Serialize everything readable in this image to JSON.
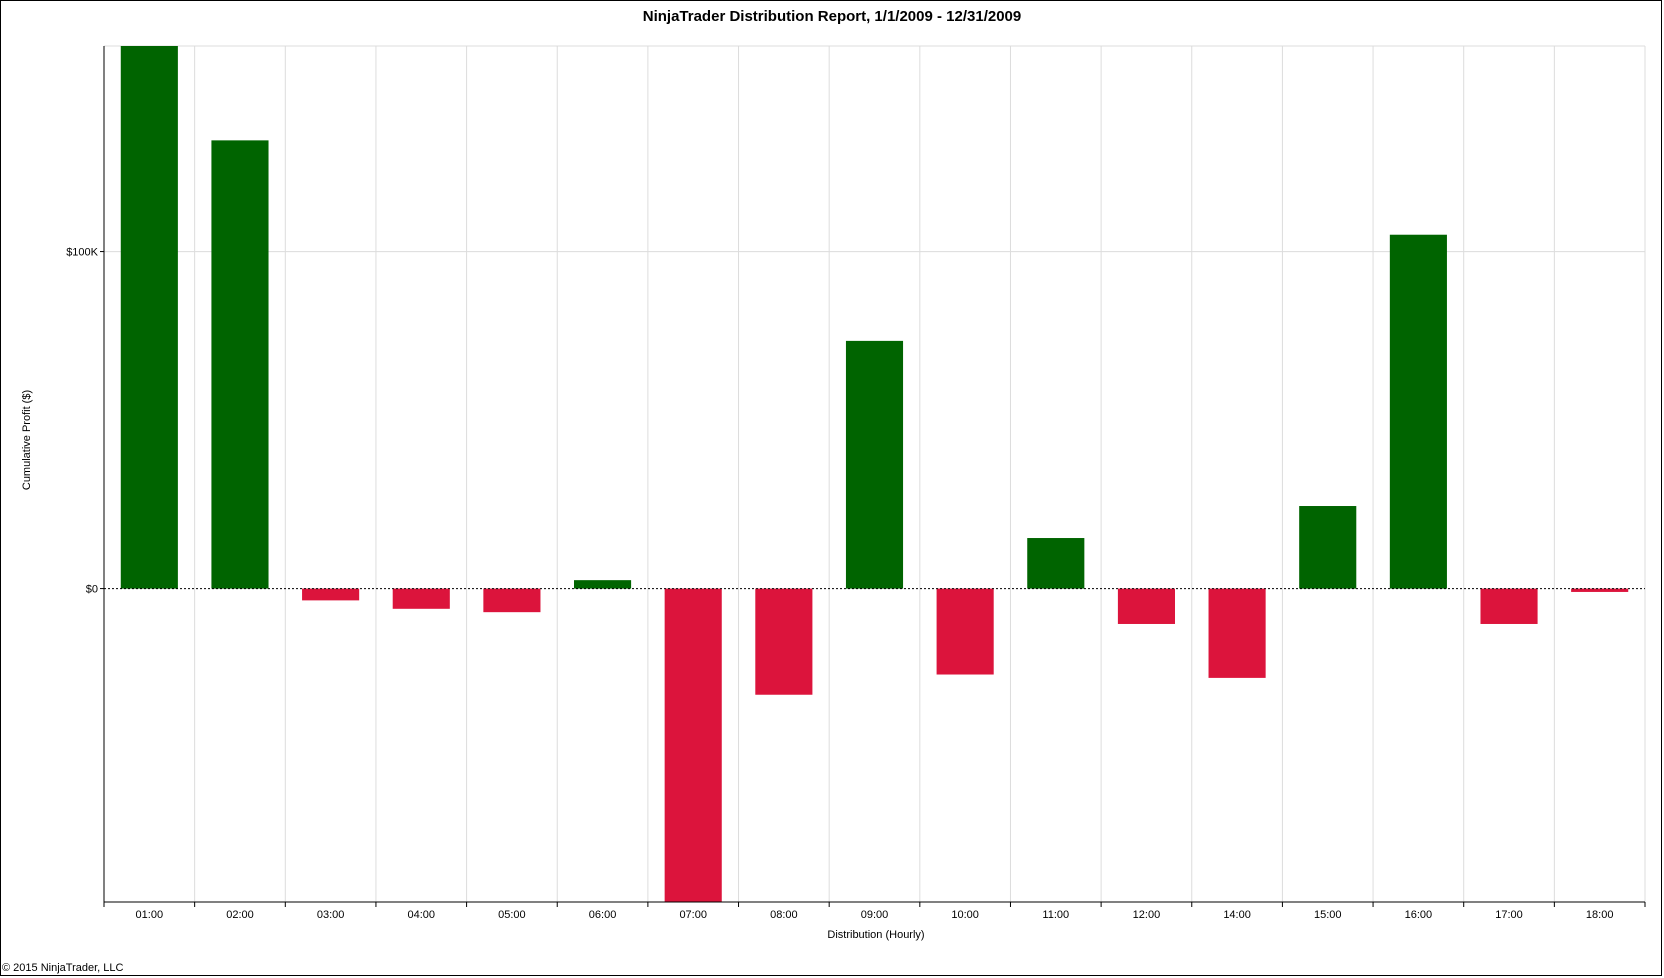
{
  "title": "NinjaTrader Distribution Report, 1/1/2009 - 12/31/2009",
  "footer": "© 2015 NinjaTrader, LLC",
  "chart_data": {
    "type": "bar",
    "title": "NinjaTrader Distribution Report, 1/1/2009 - 12/31/2009",
    "xlabel": "Distribution (Hourly)",
    "ylabel": "Cumulative Profit ($)",
    "categories": [
      "01:00",
      "02:00",
      "03:00",
      "04:00",
      "05:00",
      "06:00",
      "07:00",
      "08:00",
      "09:00",
      "10:00",
      "11:00",
      "12:00",
      "14:00",
      "15:00",
      "16:00",
      "17:00",
      "18:00"
    ],
    "values": [
      161000,
      133000,
      -3500,
      -6000,
      -7000,
      2500,
      -93000,
      -31500,
      73500,
      -25500,
      15000,
      -10500,
      -26500,
      24500,
      105000,
      -10500,
      -1000
    ],
    "ylim": [
      -93000,
      161000
    ],
    "yticks": [
      0,
      100000
    ],
    "ytick_labels": [
      "$0",
      "$100K"
    ],
    "grid": true,
    "legend": "none",
    "colors": {
      "positive": "#006400",
      "negative": "#dc143c",
      "grid": "#dcdcdc",
      "zero_line": "#000000"
    }
  }
}
